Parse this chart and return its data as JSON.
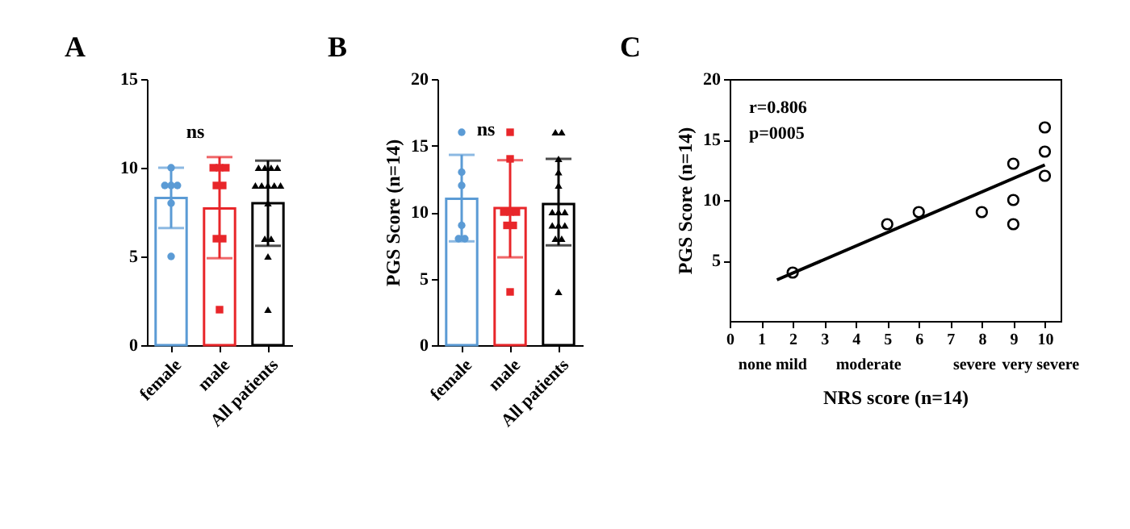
{
  "chart_data": [
    {
      "type": "bar",
      "title": "A",
      "categories": [
        "female",
        "male",
        "All patients"
      ],
      "ylim": [
        0,
        15
      ],
      "yticks": [
        0,
        5,
        10,
        15
      ],
      "grid": false,
      "annotations": [
        "ns"
      ],
      "series": [
        {
          "type": "bar",
          "values": [
            8.3,
            7.7,
            8.0
          ],
          "colors": [
            "#5b9bd5",
            "#e8262a",
            "#000000"
          ],
          "errors": [
            [
              6.6,
              10.0
            ],
            [
              4.9,
              10.6
            ],
            [
              5.6,
              10.4
            ]
          ]
        },
        {
          "type": "scatter",
          "marker": "circle",
          "color": "#5b9bd5",
          "x": [
            "female",
            "female",
            "female",
            "female",
            "female",
            "female"
          ],
          "values": [
            10,
            9,
            9,
            9,
            8,
            5
          ]
        },
        {
          "type": "scatter",
          "marker": "square",
          "color": "#e8262a",
          "x": [
            "male",
            "male",
            "male",
            "male",
            "male",
            "male",
            "male",
            "male"
          ],
          "values": [
            10,
            10,
            10,
            9,
            9,
            6,
            6,
            2
          ]
        },
        {
          "type": "scatter",
          "marker": "triangle",
          "color": "#000000",
          "x": [
            "All patients",
            "All patients",
            "All patients",
            "All patients",
            "All patients",
            "All patients",
            "All patients",
            "All patients",
            "All patients",
            "All patients",
            "All patients",
            "All patients",
            "All patients",
            "All patients"
          ],
          "values": [
            10,
            10,
            10,
            10,
            9,
            9,
            9,
            9,
            9,
            8,
            6,
            6,
            5,
            2
          ]
        }
      ]
    },
    {
      "type": "bar",
      "title": "B",
      "ylabel": "PGS Score (n=14)",
      "categories": [
        "female",
        "male",
        "All patients"
      ],
      "ylim": [
        0,
        20
      ],
      "yticks": [
        0,
        5,
        10,
        15,
        20
      ],
      "grid": false,
      "annotations": [
        "ns"
      ],
      "series": [
        {
          "type": "bar",
          "values": [
            11.0,
            10.3,
            10.6
          ],
          "colors": [
            "#5b9bd5",
            "#e8262a",
            "#000000"
          ],
          "errors": [
            [
              7.8,
              14.3
            ],
            [
              6.6,
              13.9
            ],
            [
              7.5,
              14.0
            ]
          ]
        },
        {
          "type": "scatter",
          "marker": "circle",
          "color": "#5b9bd5",
          "x": [
            "female",
            "female",
            "female",
            "female",
            "female",
            "female"
          ],
          "values": [
            16,
            13,
            12,
            9,
            8,
            8
          ]
        },
        {
          "type": "scatter",
          "marker": "square",
          "color": "#e8262a",
          "x": [
            "male",
            "male",
            "male",
            "male",
            "male",
            "male",
            "male",
            "male"
          ],
          "values": [
            16,
            14,
            10,
            10,
            10,
            9,
            9,
            4
          ]
        },
        {
          "type": "scatter",
          "marker": "triangle",
          "color": "#000000",
          "x": [
            "All patients",
            "All patients",
            "All patients",
            "All patients",
            "All patients",
            "All patients",
            "All patients",
            "All patients",
            "All patients",
            "All patients",
            "All patients",
            "All patients",
            "All patients",
            "All patients"
          ],
          "values": [
            16,
            16,
            14,
            13,
            12,
            10,
            10,
            10,
            9,
            9,
            9,
            8,
            8,
            4
          ]
        }
      ]
    },
    {
      "type": "scatter",
      "title": "C",
      "xlabel": "NRS score (n=14)",
      "ylabel": "PGS Score (n=14)",
      "xlim": [
        0,
        10.5
      ],
      "xticks": [
        0,
        1,
        2,
        3,
        4,
        5,
        6,
        7,
        8,
        9,
        10
      ],
      "ylim": [
        0,
        20
      ],
      "yticks": [
        5,
        10,
        15,
        20
      ],
      "grid": false,
      "annotations": [
        "r=0.806",
        "p=0005",
        "none mild",
        "moderate",
        "severe",
        "very severe"
      ],
      "series": [
        {
          "type": "scatter",
          "marker": "circle",
          "color": "#000000",
          "x": [
            2,
            5,
            6,
            8,
            9,
            9,
            9,
            10,
            10,
            10
          ],
          "values": [
            4,
            8,
            9,
            9,
            13,
            10,
            8,
            16,
            14,
            12
          ]
        },
        {
          "type": "line",
          "color": "#000000",
          "x": [
            1.5,
            10
          ],
          "values": [
            3.4,
            12.9
          ]
        }
      ]
    }
  ]
}
